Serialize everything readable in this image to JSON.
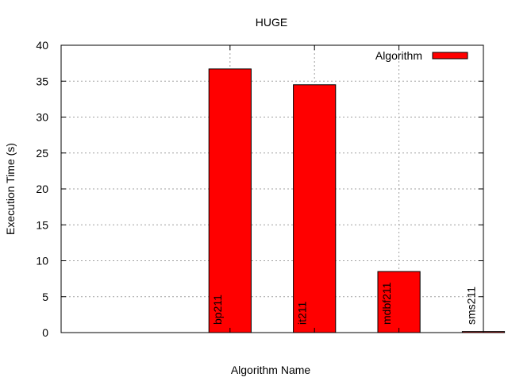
{
  "chart_data": {
    "type": "bar",
    "title": "HUGE",
    "xlabel": "Algorithm Name",
    "ylabel": "Execution Time (s)",
    "ylim": [
      0,
      40
    ],
    "yticks": [
      "0",
      "5",
      "10",
      "15",
      "20",
      "25",
      "30",
      "35",
      "40"
    ],
    "categories": [
      "bp211",
      "it211",
      "mdbf211",
      "sms211"
    ],
    "series": [
      {
        "name": "Algorithm",
        "values": [
          36.7,
          34.5,
          8.5,
          0.15
        ],
        "color": "#ff0000"
      }
    ],
    "grid": true,
    "legend_position": "top-right",
    "bar_label_orientation": "vertical"
  }
}
